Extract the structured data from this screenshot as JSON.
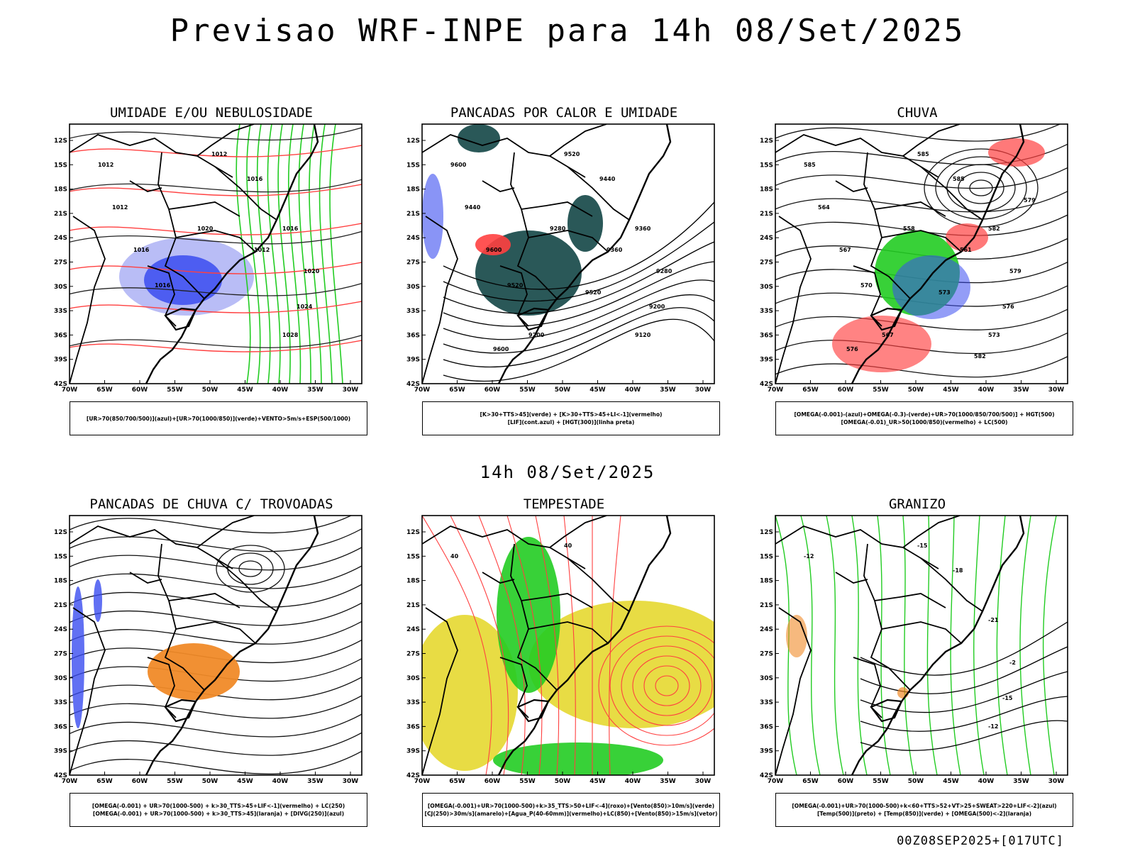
{
  "header": {
    "title": "Previsao WRF-INPE  para 14h 08/Set/2025"
  },
  "middle": {
    "date_label": "14h 08/Set/2025"
  },
  "footer": {
    "run_code": "00Z08SEP2025+[017UTC]"
  },
  "axes": {
    "lat_labels": [
      "12S",
      "15S",
      "18S",
      "21S",
      "24S",
      "27S",
      "30S",
      "33S",
      "36S",
      "39S",
      "42S"
    ],
    "lon_labels": [
      "70W",
      "65W",
      "60W",
      "55W",
      "50W",
      "45W",
      "40W",
      "35W",
      "30W"
    ]
  },
  "colors": {
    "blue": "#3a4cf0",
    "light_blue": "#a8acf4",
    "green": "#22cc22",
    "red": "#ff4040",
    "dark_teal": "#1f4f4f",
    "orange": "#f08a28",
    "yellow": "#e6d830",
    "black": "#000000"
  },
  "panels": [
    {
      "id": "umidade",
      "title": "UMIDADE E/OU NEBULOSIDADE",
      "legend": [
        "[UR>70(850/700/500)](azul)+[UR>70(1000/850)](verde)+VENTO>5m/s+ESP(500/1000)"
      ],
      "contour_labels": [
        "1012",
        "1012",
        "1016",
        "1016",
        "1020",
        "1024",
        "1028",
        "1016",
        "1016",
        "1012",
        "1012",
        "1020"
      ]
    },
    {
      "id": "pancadas-calor",
      "title": "PANCADAS POR CALOR E UMIDADE",
      "legend": [
        "[K>30+TTS>45](verde) + [K>30+TTS>45+LI<-1](vermelho)",
        "[LIF](cont.azul) + [HGT(300)](linha preta)"
      ],
      "contour_labels": [
        "9600",
        "9520",
        "9440",
        "9360",
        "9280",
        "9200",
        "9120",
        "9520",
        "9600",
        "9440",
        "9360",
        "9280",
        "9200",
        "9520",
        "9600"
      ]
    },
    {
      "id": "chuva",
      "title": "CHUVA",
      "legend": [
        "[OMEGA(-0.001)-(azul)+OMEGA(-0.3)-(verde)+UR>70(1000/850/700/500)] + HGT(500)",
        "[OMEGA(-0.01)_UR>50(1000/850)(vermelho) + LC(500)"
      ],
      "contour_labels": [
        "585",
        "585",
        "585",
        "582",
        "579",
        "576",
        "573",
        "570",
        "567",
        "564",
        "561",
        "558",
        "567",
        "573",
        "576",
        "579",
        "582"
      ]
    },
    {
      "id": "pancadas-trovoadas",
      "title": "PANCADAS DE CHUVA C/ TROVOADAS",
      "legend": [
        "[OMEGA(-0.001) + UR>70(1000-500) + k>30_TTS>45+LIF<-1](vermelho) + LC(250)",
        "[OMEGA(-0.001) + UR>70(1000-500) + k>30_TTS>45](laranja) + [DIVG(250)](azul)"
      ],
      "contour_labels": []
    },
    {
      "id": "tempestade",
      "title": "TEMPESTADE",
      "legend": [
        "[OMEGA(-0.001)+UR>70(1000-500)+k>35_TTS>50+LIF<-4](roxo)+[Vento(850)>10m/s](verde)",
        "[CJ(250)>30m/s](amarelo)+[Agua_P(40-60mm)](vermelho)+LC(850)+[Vento(850)>15m/s](vetor)"
      ],
      "contour_labels": [
        "40",
        "40"
      ]
    },
    {
      "id": "granizo",
      "title": "GRANIZO",
      "legend": [
        "[OMEGA(-0.001)+UR>70(1000-500)+k<60+TTS>52+VT>25+SWEAT>220+LIF<-2](azul)",
        "[Temp(500)](preto) + [Temp(850)](verde) + [OMEGA(500)<-2](laranja)"
      ],
      "contour_labels": [
        "-12",
        "-15",
        "-18",
        "-21",
        "-2",
        "-15",
        "-12"
      ]
    }
  ]
}
